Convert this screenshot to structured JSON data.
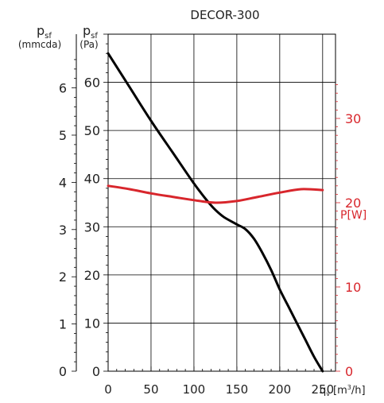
{
  "chart_data": {
    "type": "line",
    "title": "DECOR-300",
    "left_axis_1": {
      "symbol": "p",
      "subscript": "sf",
      "unit": "(mmcda)",
      "ticks": [
        0,
        1,
        2,
        3,
        4,
        5,
        6
      ]
    },
    "left_axis_2": {
      "symbol": "p",
      "subscript": "sf",
      "unit": "(Pa)",
      "ticks": [
        0,
        10,
        20,
        30,
        40,
        50,
        60
      ],
      "ylim": [
        0,
        70
      ]
    },
    "right_axis": {
      "label": "P[W]",
      "ticks": [
        0,
        10,
        20,
        30
      ],
      "ylim": [
        0,
        40
      ],
      "color": "#d8262c"
    },
    "x_axis": {
      "symbol": "q",
      "subscript": "v",
      "unit_pre": "[m",
      "unit_sup": "3",
      "unit_post": "/h]",
      "ticks": [
        0,
        50,
        100,
        150,
        200,
        250
      ],
      "xlim": [
        0,
        265
      ]
    },
    "grid": true,
    "series": [
      {
        "axis": "left",
        "color": "#000000",
        "x": [
          0,
          25,
          50,
          75,
          100,
          115,
          125,
          135,
          150,
          160,
          170,
          180,
          190,
          200,
          210,
          220,
          230,
          240,
          250
        ],
        "y": [
          66,
          59,
          52,
          45.5,
          39,
          35.5,
          33.5,
          32,
          30.5,
          29.5,
          27.5,
          24.5,
          21,
          17,
          13.5,
          10,
          6.5,
          3,
          0
        ]
      },
      {
        "axis": "right",
        "color": "#d8262c",
        "x": [
          0,
          25,
          50,
          75,
          100,
          125,
          150,
          175,
          200,
          225,
          250
        ],
        "y": [
          22,
          21.6,
          21.1,
          20.7,
          20.3,
          20.0,
          20.2,
          20.7,
          21.2,
          21.6,
          21.5
        ]
      }
    ]
  }
}
